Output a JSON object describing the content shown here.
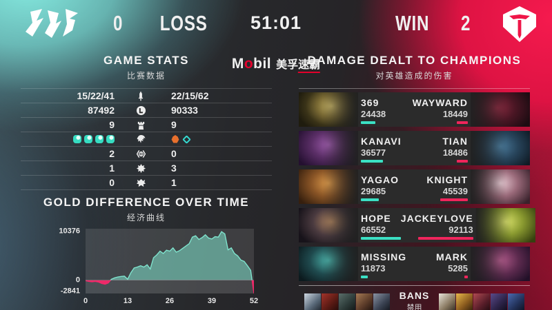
{
  "scoreboard": {
    "left_team": {
      "name": "JDG",
      "score": "0",
      "result": "LOSS"
    },
    "timer": "51:01",
    "right_team": {
      "name": "TES",
      "result": "WIN",
      "score": "2"
    }
  },
  "sponsor": {
    "brand_m": "M",
    "brand_o": "o",
    "brand_rest": "bil",
    "cn_left": "美孚",
    "cn_right": "速霸"
  },
  "game_stats": {
    "title": "GAME STATS",
    "subtitle": "比赛数据",
    "rows": [
      {
        "icon": "kda-icon",
        "left": "15/22/41",
        "right": "22/15/62"
      },
      {
        "icon": "gold-icon",
        "left": "87492",
        "right": "90333"
      },
      {
        "icon": "tower-icon",
        "left": "9",
        "right": "9"
      },
      {
        "icon": "dragon-icon",
        "left_drakes": [
          "ocean",
          "ocean",
          "ocean",
          "ocean"
        ],
        "right_drakes": [
          "infernal",
          "hextech"
        ]
      },
      {
        "icon": "herald-icon",
        "left": "2",
        "right": "0"
      },
      {
        "icon": "baron-icon",
        "left": "1",
        "right": "3"
      },
      {
        "icon": "elder-icon",
        "left": "0",
        "right": "1"
      }
    ]
  },
  "chart_data": {
    "type": "area",
    "title": "GOLD DIFFERENCE OVER TIME",
    "subtitle": "经济曲线",
    "xlabel": "",
    "ylabel": "",
    "x": [
      0,
      1,
      2,
      3,
      4,
      5,
      6,
      7,
      8,
      9,
      10,
      11,
      12,
      13,
      14,
      15,
      16,
      17,
      18,
      19,
      20,
      21,
      22,
      23,
      24,
      25,
      26,
      27,
      28,
      29,
      30,
      31,
      32,
      33,
      34,
      35,
      36,
      37,
      38,
      39,
      40,
      41,
      42,
      43,
      44,
      45,
      46,
      47,
      48,
      49,
      50,
      51,
      52
    ],
    "values": [
      -100,
      -250,
      -350,
      -250,
      -400,
      -700,
      -850,
      -600,
      200,
      500,
      700,
      800,
      850,
      200,
      1600,
      2600,
      2800,
      3100,
      2800,
      3300,
      2400,
      4800,
      5400,
      6200,
      5700,
      6400,
      6200,
      6900,
      6000,
      6300,
      6800,
      7300,
      7800,
      9200,
      9500,
      8700,
      9100,
      9700,
      9000,
      8800,
      9300,
      9200,
      10376,
      9900,
      6500,
      6900,
      5700,
      5200,
      4300,
      4000,
      3100,
      2100,
      -2841
    ],
    "xticks": [
      "0",
      "13",
      "26",
      "39",
      "52"
    ],
    "yticks": [
      "10376",
      "0",
      "-2841"
    ],
    "ylim": [
      -2841,
      11000
    ],
    "grid": false,
    "positive_color": "#7fe3cd",
    "negative_color": "#f5286a"
  },
  "damage_panel": {
    "title": "DAMAGE DEALT TO CHAMPIONS",
    "subtitle": "对英雄造成的伤害",
    "max_damage": 92113,
    "rows": [
      {
        "left": {
          "player": "369",
          "damage": 24438
        },
        "right": {
          "player": "WAYWARD",
          "damage": 18449
        }
      },
      {
        "left": {
          "player": "KANAVI",
          "damage": 36577
        },
        "right": {
          "player": "TIAN",
          "damage": 18486
        }
      },
      {
        "left": {
          "player": "YAGAO",
          "damage": 29685
        },
        "right": {
          "player": "KNIGHT",
          "damage": 45539
        }
      },
      {
        "left": {
          "player": "HOPE",
          "damage": 66552
        },
        "right": {
          "player": "JACKEYLOVE",
          "damage": 92113
        }
      },
      {
        "left": {
          "player": "MISSING",
          "damage": 11873
        },
        "right": {
          "player": "MARK",
          "damage": 5285
        }
      }
    ],
    "bans": {
      "label": "BANS",
      "label_cn": "禁用",
      "left_count": 5,
      "right_count": 5
    }
  }
}
